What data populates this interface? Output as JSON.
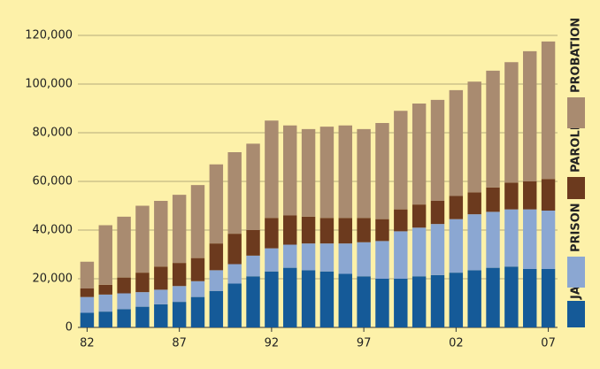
{
  "chart_data": {
    "type": "stacked_bar",
    "categories": [
      "82",
      null,
      null,
      null,
      null,
      "87",
      null,
      null,
      null,
      null,
      "92",
      null,
      null,
      null,
      null,
      "97",
      null,
      null,
      null,
      null,
      "02",
      null,
      null,
      null,
      null,
      "07"
    ],
    "series": [
      {
        "name": "JAIL",
        "color": "#155a98",
        "values": [
          6000,
          6500,
          7500,
          8500,
          9500,
          10500,
          12500,
          15000,
          18000,
          21000,
          23000,
          24500,
          23500,
          23000,
          22000,
          21000,
          20000,
          20000,
          21000,
          21500,
          22500,
          23500,
          24500,
          25000,
          24000,
          24000
        ]
      },
      {
        "name": "PRISON",
        "color": "#8ba7d2",
        "values": [
          6500,
          7000,
          6500,
          6000,
          6000,
          6500,
          6500,
          8500,
          8000,
          8500,
          9500,
          9500,
          11000,
          11500,
          12500,
          14000,
          15500,
          19500,
          20000,
          21000,
          22000,
          23000,
          23000,
          23500,
          24500,
          24000
        ]
      },
      {
        "name": "PAROLE",
        "color": "#6c3a1e",
        "values": [
          3500,
          4000,
          6500,
          8000,
          9500,
          9500,
          9500,
          11000,
          12500,
          10500,
          12500,
          12000,
          11000,
          10500,
          10500,
          10000,
          9000,
          9000,
          9500,
          9500,
          9500,
          9000,
          10000,
          11000,
          11500,
          13000
        ]
      },
      {
        "name": "PROBATION",
        "color": "#a98b70",
        "values": [
          11000,
          24500,
          25000,
          27500,
          27000,
          28000,
          30000,
          32500,
          33500,
          35500,
          40000,
          37000,
          36000,
          37500,
          38000,
          36500,
          39500,
          40500,
          41500,
          41500,
          43500,
          45500,
          48000,
          49500,
          53500,
          56500
        ]
      }
    ],
    "ylim": [
      0,
      120000
    ],
    "yticks": [
      0,
      {
        "value": 20000,
        "label": "20,000"
      },
      {
        "value": 40000,
        "label": "40,000"
      },
      {
        "value": 60000,
        "label": "60,000"
      },
      {
        "value": 80000,
        "label": "80,000"
      },
      {
        "value": 100000,
        "label": "100,000"
      },
      {
        "value": 120000,
        "label": "120,000"
      }
    ],
    "grid": true
  }
}
